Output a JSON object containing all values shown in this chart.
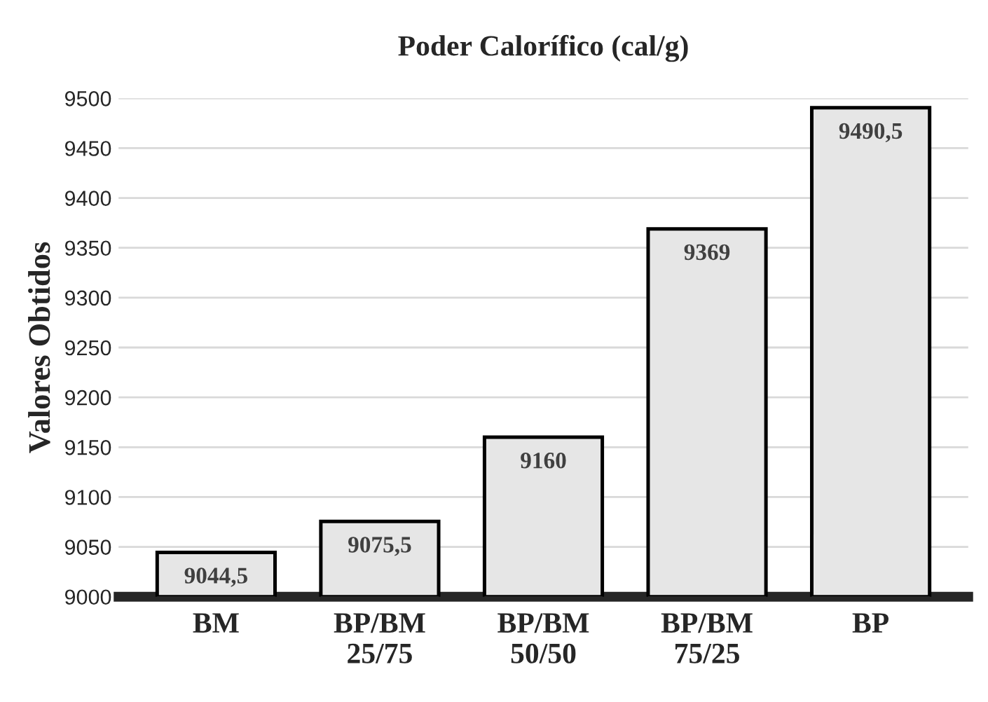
{
  "chart_data": {
    "type": "bar",
    "title": "Poder Calorífico (cal/g)",
    "ylabel": "Valores Obtidos",
    "categories": [
      "BM",
      "BP/BM\n25/75",
      "BP/BM\n50/50",
      "BP/BM\n75/25",
      "BP"
    ],
    "values": [
      9044.5,
      9075.5,
      9160,
      9369,
      9490.5
    ],
    "value_labels": [
      "9044,5",
      "9075,5",
      "9160",
      "9369",
      "9490,5"
    ],
    "color": "#e6e6e6",
    "ylim": [
      9000,
      9500
    ],
    "yticks": [
      9000,
      9050,
      9100,
      9150,
      9200,
      9250,
      9300,
      9350,
      9400,
      9450,
      9500
    ],
    "grid": "y",
    "legend": false
  }
}
